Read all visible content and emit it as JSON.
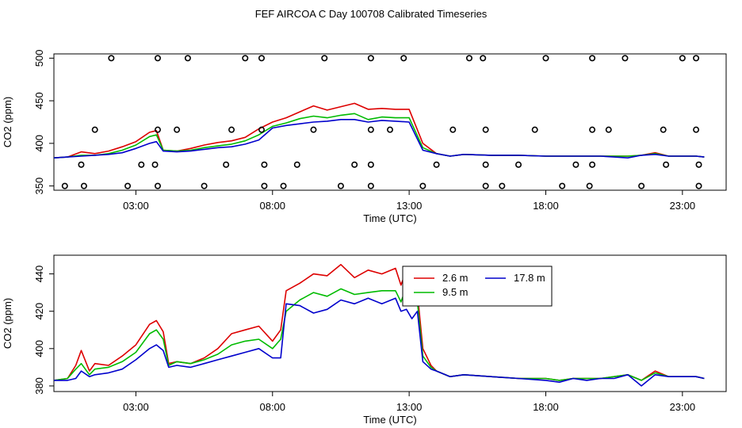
{
  "title": "FEF  AIRCOA C  Day 100708  Calibrated Timeseries",
  "colors": {
    "red": "#dd0000",
    "green": "#00bb00",
    "blue": "#0000cc",
    "axis": "#000000"
  },
  "chart_data": [
    {
      "type": "line",
      "panel": "top",
      "xlabel": "Time (UTC)",
      "ylabel": "CO2 (ppm)",
      "xlim": [
        0,
        24.6
      ],
      "ylim": [
        345,
        505
      ],
      "xticks": [
        3,
        8,
        13,
        18,
        23
      ],
      "xtick_labels": [
        "03:00",
        "08:00",
        "13:00",
        "18:00",
        "23:00"
      ],
      "yticks": [
        350,
        400,
        450,
        500
      ],
      "ytick_labels": [
        "350",
        "400",
        "450",
        "500"
      ],
      "x": [
        0.0,
        0.5,
        1.0,
        1.5,
        2.0,
        2.5,
        3.0,
        3.5,
        3.75,
        4.0,
        4.5,
        5.0,
        5.5,
        6.0,
        6.5,
        7.0,
        7.5,
        8.0,
        8.5,
        9.0,
        9.5,
        10.0,
        10.5,
        11.0,
        11.5,
        12.0,
        12.5,
        13.0,
        13.5,
        14.0,
        14.5,
        15.0,
        16.0,
        17.0,
        18.0,
        19.0,
        20.0,
        20.5,
        21.0,
        21.5,
        22.0,
        22.5,
        23.0,
        23.5,
        23.8
      ],
      "series": [
        {
          "name": "2.6 m",
          "color": "#dd0000",
          "values": [
            383,
            384,
            390,
            388,
            391,
            396,
            402,
            413,
            415,
            392,
            391,
            394,
            398,
            401,
            403,
            407,
            417,
            425,
            430,
            437,
            444,
            439,
            443,
            447,
            440,
            441,
            440,
            440,
            400,
            388,
            385,
            387,
            386,
            386,
            385,
            385,
            385,
            385,
            385,
            386,
            389,
            385,
            385,
            385,
            384
          ]
        },
        {
          "name": "9.5 m",
          "color": "#00bb00",
          "values": [
            383,
            384,
            386,
            386,
            388,
            392,
            398,
            408,
            410,
            392,
            391,
            392,
            395,
            397,
            399,
            403,
            410,
            420,
            424,
            429,
            432,
            430,
            433,
            435,
            428,
            431,
            430,
            430,
            395,
            388,
            385,
            387,
            386,
            386,
            385,
            385,
            385,
            385,
            385,
            386,
            388,
            385,
            385,
            385,
            384
          ]
        },
        {
          "name": "17.8 m",
          "color": "#0000cc",
          "values": [
            383,
            384,
            385,
            386,
            387,
            389,
            394,
            400,
            402,
            391,
            390,
            391,
            393,
            395,
            396,
            399,
            404,
            418,
            421,
            423,
            425,
            426,
            428,
            428,
            425,
            427,
            426,
            425,
            392,
            388,
            385,
            387,
            386,
            386,
            385,
            385,
            385,
            384,
            383,
            386,
            387,
            385,
            385,
            385,
            384
          ]
        }
      ],
      "scatter_points": {
        "marker": "open-circle",
        "color": "#000000",
        "x": [
          2.1,
          3.8,
          4.9,
          7.0,
          7.6,
          9.9,
          11.6,
          12.8,
          15.2,
          15.7,
          18.0,
          19.7,
          20.9,
          23.0,
          23.5,
          1.1,
          2.7,
          3.8,
          5.5,
          7.7,
          8.4,
          10.5,
          11.6,
          13.5,
          15.8,
          16.4,
          18.6,
          19.6,
          21.5,
          23.6,
          0.4,
          1.0,
          3.2,
          3.7,
          6.3,
          7.7,
          8.9,
          11.0,
          11.6,
          14.0,
          15.8,
          17.0,
          19.1,
          19.7,
          22.4,
          23.6,
          1.5,
          3.8,
          4.5,
          6.5,
          7.6,
          9.5,
          11.6,
          12.3,
          14.6,
          15.8,
          17.6,
          19.7,
          20.3,
          22.3,
          23.5
        ],
        "y": [
          500,
          500,
          500,
          500,
          500,
          500,
          500,
          500,
          500,
          500,
          500,
          500,
          500,
          500,
          500,
          350,
          350,
          350,
          350,
          350,
          350,
          350,
          350,
          350,
          350,
          350,
          350,
          350,
          350,
          350,
          350,
          375,
          375,
          375,
          375,
          375,
          375,
          375,
          375,
          375,
          375,
          375,
          375,
          375,
          375,
          375,
          416,
          416,
          416,
          416,
          416,
          416,
          416,
          416,
          416,
          416,
          416,
          416,
          416,
          416,
          416
        ]
      }
    },
    {
      "type": "line",
      "panel": "bottom",
      "xlabel": "Time (UTC)",
      "ylabel": "CO2 (ppm)",
      "xlim": [
        0,
        24.6
      ],
      "ylim": [
        377,
        450
      ],
      "xticks": [
        3,
        8,
        13,
        18,
        23
      ],
      "xtick_labels": [
        "03:00",
        "08:00",
        "13:00",
        "18:00",
        "23:00"
      ],
      "yticks": [
        380,
        400,
        420,
        440
      ],
      "ytick_labels": [
        "380",
        "400",
        "420",
        "440"
      ],
      "legend": {
        "placement": "top-center",
        "entries": [
          "2.6 m",
          "9.5 m",
          "17.8 m"
        ]
      },
      "x": [
        0.0,
        0.5,
        0.8,
        1.0,
        1.3,
        1.5,
        2.0,
        2.5,
        3.0,
        3.5,
        3.75,
        4.0,
        4.2,
        4.5,
        5.0,
        5.5,
        6.0,
        6.5,
        7.0,
        7.5,
        8.0,
        8.3,
        8.5,
        9.0,
        9.5,
        10.0,
        10.5,
        11.0,
        11.5,
        12.0,
        12.5,
        12.7,
        12.9,
        13.1,
        13.3,
        13.5,
        13.8,
        14.0,
        14.5,
        15.0,
        16.0,
        17.0,
        18.0,
        18.5,
        19.0,
        19.5,
        20.0,
        20.5,
        21.0,
        21.5,
        22.0,
        22.5,
        23.0,
        23.5,
        23.8
      ],
      "series": [
        {
          "name": "2.6 m",
          "color": "#dd0000",
          "values": [
            383,
            384,
            391,
            399,
            388,
            392,
            391,
            396,
            402,
            413,
            415,
            409,
            392,
            393,
            392,
            395,
            400,
            408,
            410,
            412,
            404,
            410,
            431,
            435,
            440,
            439,
            445,
            438,
            442,
            440,
            443,
            434,
            442,
            435,
            430,
            400,
            391,
            388,
            385,
            386,
            385,
            384,
            384,
            383,
            384,
            384,
            384,
            385,
            386,
            383,
            388,
            385,
            385,
            385,
            384
          ]
        },
        {
          "name": "9.5 m",
          "color": "#00bb00",
          "values": [
            383,
            384,
            389,
            392,
            386,
            389,
            390,
            393,
            398,
            408,
            410,
            405,
            391,
            393,
            392,
            394,
            397,
            402,
            404,
            405,
            400,
            405,
            420,
            426,
            430,
            428,
            432,
            429,
            430,
            431,
            431,
            425,
            433,
            428,
            425,
            396,
            390,
            388,
            385,
            386,
            385,
            384,
            384,
            383,
            384,
            384,
            384,
            385,
            386,
            383,
            387,
            385,
            385,
            385,
            384
          ]
        },
        {
          "name": "17.8 m",
          "color": "#0000cc",
          "values": [
            383,
            383,
            384,
            388,
            385,
            386,
            387,
            389,
            394,
            400,
            402,
            399,
            390,
            391,
            390,
            392,
            394,
            396,
            398,
            400,
            395,
            395,
            424,
            423,
            419,
            421,
            426,
            424,
            427,
            424,
            427,
            420,
            421,
            416,
            420,
            393,
            389,
            388,
            385,
            386,
            385,
            384,
            383,
            382,
            384,
            383,
            384,
            384,
            386,
            380,
            386,
            385,
            385,
            385,
            384
          ]
        }
      ]
    }
  ]
}
